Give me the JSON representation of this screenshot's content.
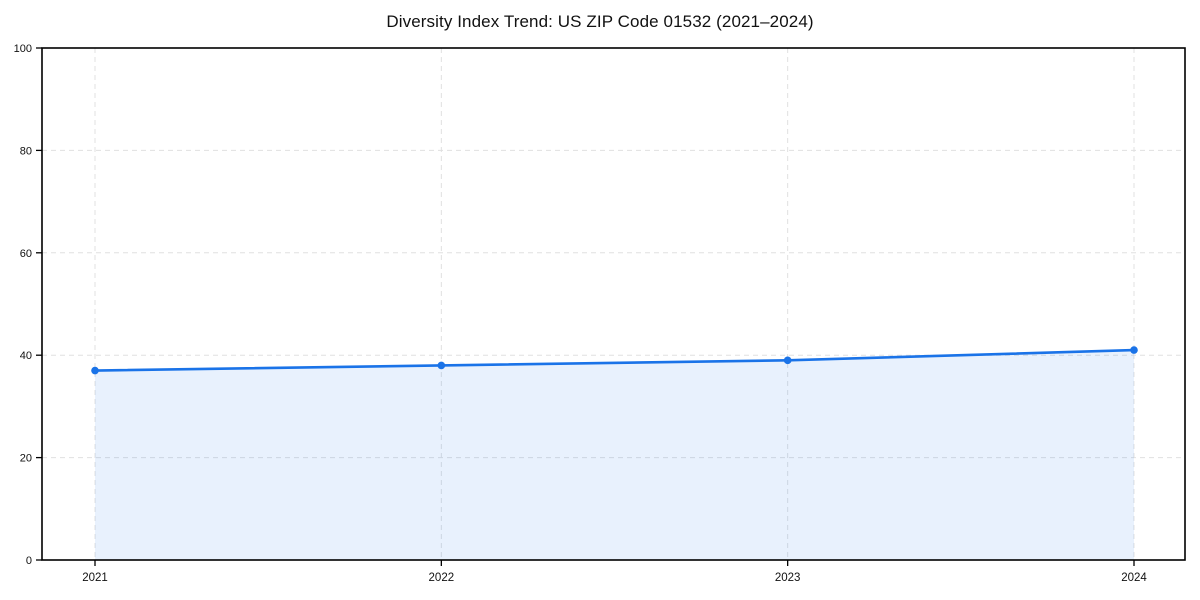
{
  "chart_data": {
    "type": "area",
    "title": "Diversity Index Trend: US ZIP Code 01532 (2021–2024)",
    "categories": [
      "2021",
      "2022",
      "2023",
      "2024"
    ],
    "series": [
      {
        "name": "Diversity Index",
        "values": [
          37,
          38,
          39,
          41
        ]
      }
    ],
    "xlabel": "",
    "ylabel": "",
    "ylim": [
      0,
      100
    ],
    "yticks": [
      0,
      20,
      40,
      60,
      80,
      100
    ],
    "grid": true,
    "grid_style": "dashed",
    "legend": "none",
    "colors": {
      "line": "#1a73e8",
      "fill": "#1a73e8",
      "fill_opacity": 0.1,
      "grid": "#e0e0e0",
      "spine": "#000000",
      "tick_text": "#111111",
      "background": "#ffffff"
    }
  }
}
